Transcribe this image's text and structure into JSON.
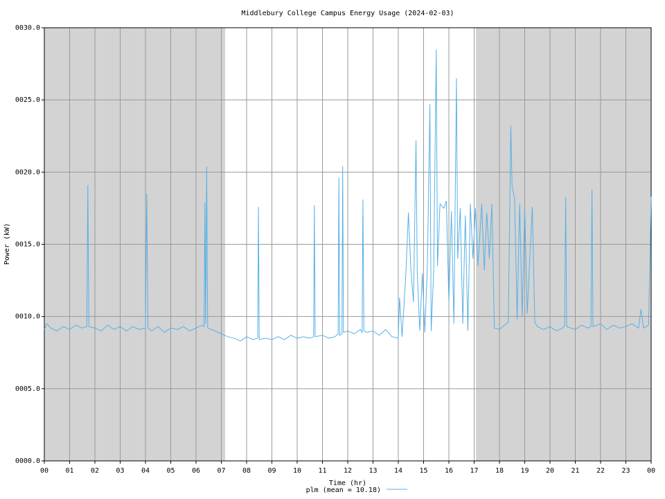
{
  "chart_data": {
    "type": "line",
    "title": "Middlebury College Campus Energy Usage (2024-02-03)",
    "x_label": "Time (hr)",
    "y_label": "Power (kW)",
    "xlim": [
      0,
      24
    ],
    "ylim": [
      0,
      30
    ],
    "xticks": [
      {
        "value": 0,
        "label": "00"
      },
      {
        "value": 1,
        "label": "01"
      },
      {
        "value": 2,
        "label": "02"
      },
      {
        "value": 3,
        "label": "03"
      },
      {
        "value": 4,
        "label": "04"
      },
      {
        "value": 5,
        "label": "05"
      },
      {
        "value": 6,
        "label": "06"
      },
      {
        "value": 7,
        "label": "07"
      },
      {
        "value": 8,
        "label": "08"
      },
      {
        "value": 9,
        "label": "09"
      },
      {
        "value": 10,
        "label": "10"
      },
      {
        "value": 11,
        "label": "11"
      },
      {
        "value": 12,
        "label": "12"
      },
      {
        "value": 13,
        "label": "13"
      },
      {
        "value": 14,
        "label": "14"
      },
      {
        "value": 15,
        "label": "15"
      },
      {
        "value": 16,
        "label": "16"
      },
      {
        "value": 17,
        "label": "17"
      },
      {
        "value": 18,
        "label": "18"
      },
      {
        "value": 19,
        "label": "19"
      },
      {
        "value": 20,
        "label": "20"
      },
      {
        "value": 21,
        "label": "21"
      },
      {
        "value": 22,
        "label": "22"
      },
      {
        "value": 23,
        "label": "23"
      },
      {
        "value": 24,
        "label": "00"
      }
    ],
    "yticks": [
      {
        "value": 0,
        "label": "0000.0"
      },
      {
        "value": 5,
        "label": "0005.0"
      },
      {
        "value": 10,
        "label": "0010.0"
      },
      {
        "value": 15,
        "label": "0015.0"
      },
      {
        "value": 20,
        "label": "0020.0"
      },
      {
        "value": 25,
        "label": "0025.0"
      },
      {
        "value": 30,
        "label": "0030.0"
      }
    ],
    "grid": true,
    "shaded_ranges": [
      [
        0,
        7.15
      ],
      [
        17.07,
        24
      ]
    ],
    "shade_color": "#d3d3d3",
    "x": [
      0,
      0.1,
      0.25,
      0.5,
      0.75,
      1,
      1.25,
      1.5,
      1.68,
      1.72,
      1.76,
      2,
      2.25,
      2.5,
      2.75,
      3,
      3.25,
      3.5,
      3.75,
      4,
      4.05,
      4.1,
      4.25,
      4.5,
      4.75,
      5,
      5.25,
      5.5,
      5.75,
      6,
      6.25,
      6.32,
      6.35,
      6.38,
      6.42,
      6.46,
      6.75,
      7,
      7.25,
      7.5,
      7.75,
      8,
      8.25,
      8.44,
      8.47,
      8.5,
      8.75,
      9,
      9.25,
      9.5,
      9.75,
      10,
      10.25,
      10.5,
      10.65,
      10.68,
      10.71,
      11,
      11.25,
      11.5,
      11.62,
      11.65,
      11.68,
      11.77,
      11.8,
      11.83,
      12,
      12.25,
      12.5,
      12.57,
      12.6,
      12.64,
      12.75,
      13,
      13.25,
      13.5,
      13.75,
      14,
      14.05,
      14.15,
      14.3,
      14.4,
      14.5,
      14.6,
      14.7,
      14.75,
      14.85,
      14.95,
      15.05,
      15.15,
      15.25,
      15.3,
      15.4,
      15.5,
      15.55,
      15.65,
      15.8,
      15.9,
      16,
      16.1,
      16.2,
      16.3,
      16.35,
      16.45,
      16.55,
      16.65,
      16.75,
      16.85,
      16.95,
      17.05,
      17.15,
      17.3,
      17.4,
      17.5,
      17.6,
      17.7,
      17.8,
      18,
      18.2,
      18.35,
      18.45,
      18.5,
      18.6,
      18.7,
      18.8,
      18.9,
      19,
      19.1,
      19.2,
      19.3,
      19.4,
      19.5,
      19.75,
      20,
      20.25,
      20.5,
      20.58,
      20.62,
      20.66,
      21,
      21.25,
      21.5,
      21.62,
      21.66,
      21.7,
      22,
      22.25,
      22.5,
      22.75,
      23,
      23.25,
      23.5,
      23.6,
      23.7,
      23.9,
      24
    ],
    "series": [
      {
        "name": "plm (mean = 10.18)",
        "color": "#56b0e6",
        "values": [
          9.1,
          9.5,
          9.2,
          9.0,
          9.3,
          9.1,
          9.4,
          9.2,
          9.3,
          19.1,
          9.3,
          9.2,
          9.0,
          9.4,
          9.1,
          9.3,
          9.0,
          9.3,
          9.1,
          9.2,
          18.5,
          9.2,
          9.0,
          9.3,
          8.9,
          9.2,
          9.1,
          9.3,
          9.0,
          9.2,
          9.4,
          9.3,
          17.9,
          9.5,
          20.4,
          9.2,
          9.0,
          8.8,
          8.6,
          8.5,
          8.3,
          8.6,
          8.4,
          8.5,
          17.6,
          8.4,
          8.5,
          8.4,
          8.6,
          8.4,
          8.7,
          8.5,
          8.6,
          8.5,
          8.6,
          17.7,
          8.6,
          8.7,
          8.5,
          8.6,
          8.8,
          19.6,
          8.7,
          8.8,
          20.4,
          8.9,
          9.0,
          8.8,
          9.1,
          8.9,
          18.1,
          9.0,
          8.9,
          9.0,
          8.7,
          9.1,
          8.6,
          8.5,
          11.3,
          8.6,
          13.0,
          17.2,
          13.2,
          11.0,
          22.2,
          13.0,
          9.0,
          13.0,
          8.9,
          13.5,
          24.7,
          9.0,
          13.2,
          28.5,
          13.5,
          17.8,
          17.5,
          18.0,
          11.0,
          17.3,
          9.5,
          26.5,
          14.0,
          17.5,
          9.5,
          17.0,
          9.0,
          17.8,
          14.0,
          17.5,
          13.5,
          17.8,
          13.2,
          17.2,
          14.0,
          17.8,
          9.2,
          9.1,
          9.4,
          9.6,
          23.2,
          19.0,
          18.2,
          9.8,
          17.8,
          10.0,
          17.5,
          10.2,
          14.0,
          17.6,
          9.6,
          9.3,
          9.1,
          9.3,
          9.0,
          9.2,
          9.4,
          18.3,
          9.3,
          9.1,
          9.4,
          9.2,
          9.3,
          18.8,
          9.3,
          9.5,
          9.1,
          9.4,
          9.2,
          9.3,
          9.5,
          9.2,
          10.5,
          9.2,
          9.4,
          18.3
        ]
      }
    ]
  }
}
